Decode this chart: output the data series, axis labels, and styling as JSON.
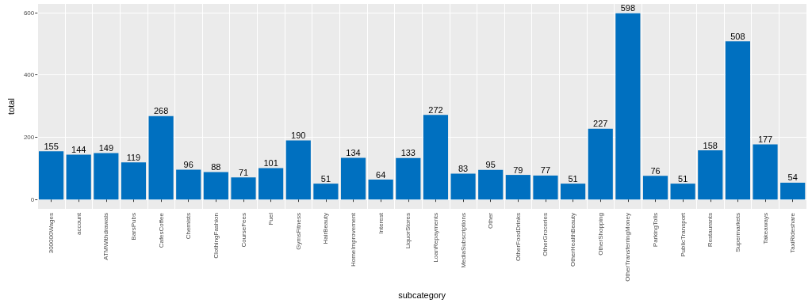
{
  "chart_data": {
    "type": "bar",
    "xlabel": "subcategory",
    "ylabel": "total",
    "categories": [
      "300000Wages",
      "account",
      "ATMWithdrawals",
      "BarsPubs",
      "CafesCoffee",
      "Chemists",
      "ClothingFashion",
      "CourseFees",
      "Fuel",
      "GymsFitness",
      "HairBeauty",
      "HomeImprovement",
      "Interest",
      "LiquorStores",
      "LoanRepayments",
      "MediaSubscriptions",
      "Other",
      "OtherFoodDrinks",
      "OtherGroceries",
      "OtherHealthBeauty",
      "OtherShopping",
      "OtherTransferringMoney",
      "ParkingTolls",
      "PublicTransport",
      "Restaurants",
      "Supermarkets",
      "Takeaways",
      "TaxiRideshare"
    ],
    "values": [
      155,
      144,
      149,
      119,
      268,
      96,
      88,
      71,
      101,
      190,
      51,
      134,
      64,
      133,
      272,
      83,
      95,
      79,
      77,
      51,
      227,
      598,
      76,
      51,
      158,
      508,
      177,
      54
    ],
    "color": "#0070c0",
    "ylim": [
      -30,
      628
    ],
    "yticks": [
      0,
      200,
      400,
      600
    ],
    "grid": true,
    "data_labels": true
  }
}
